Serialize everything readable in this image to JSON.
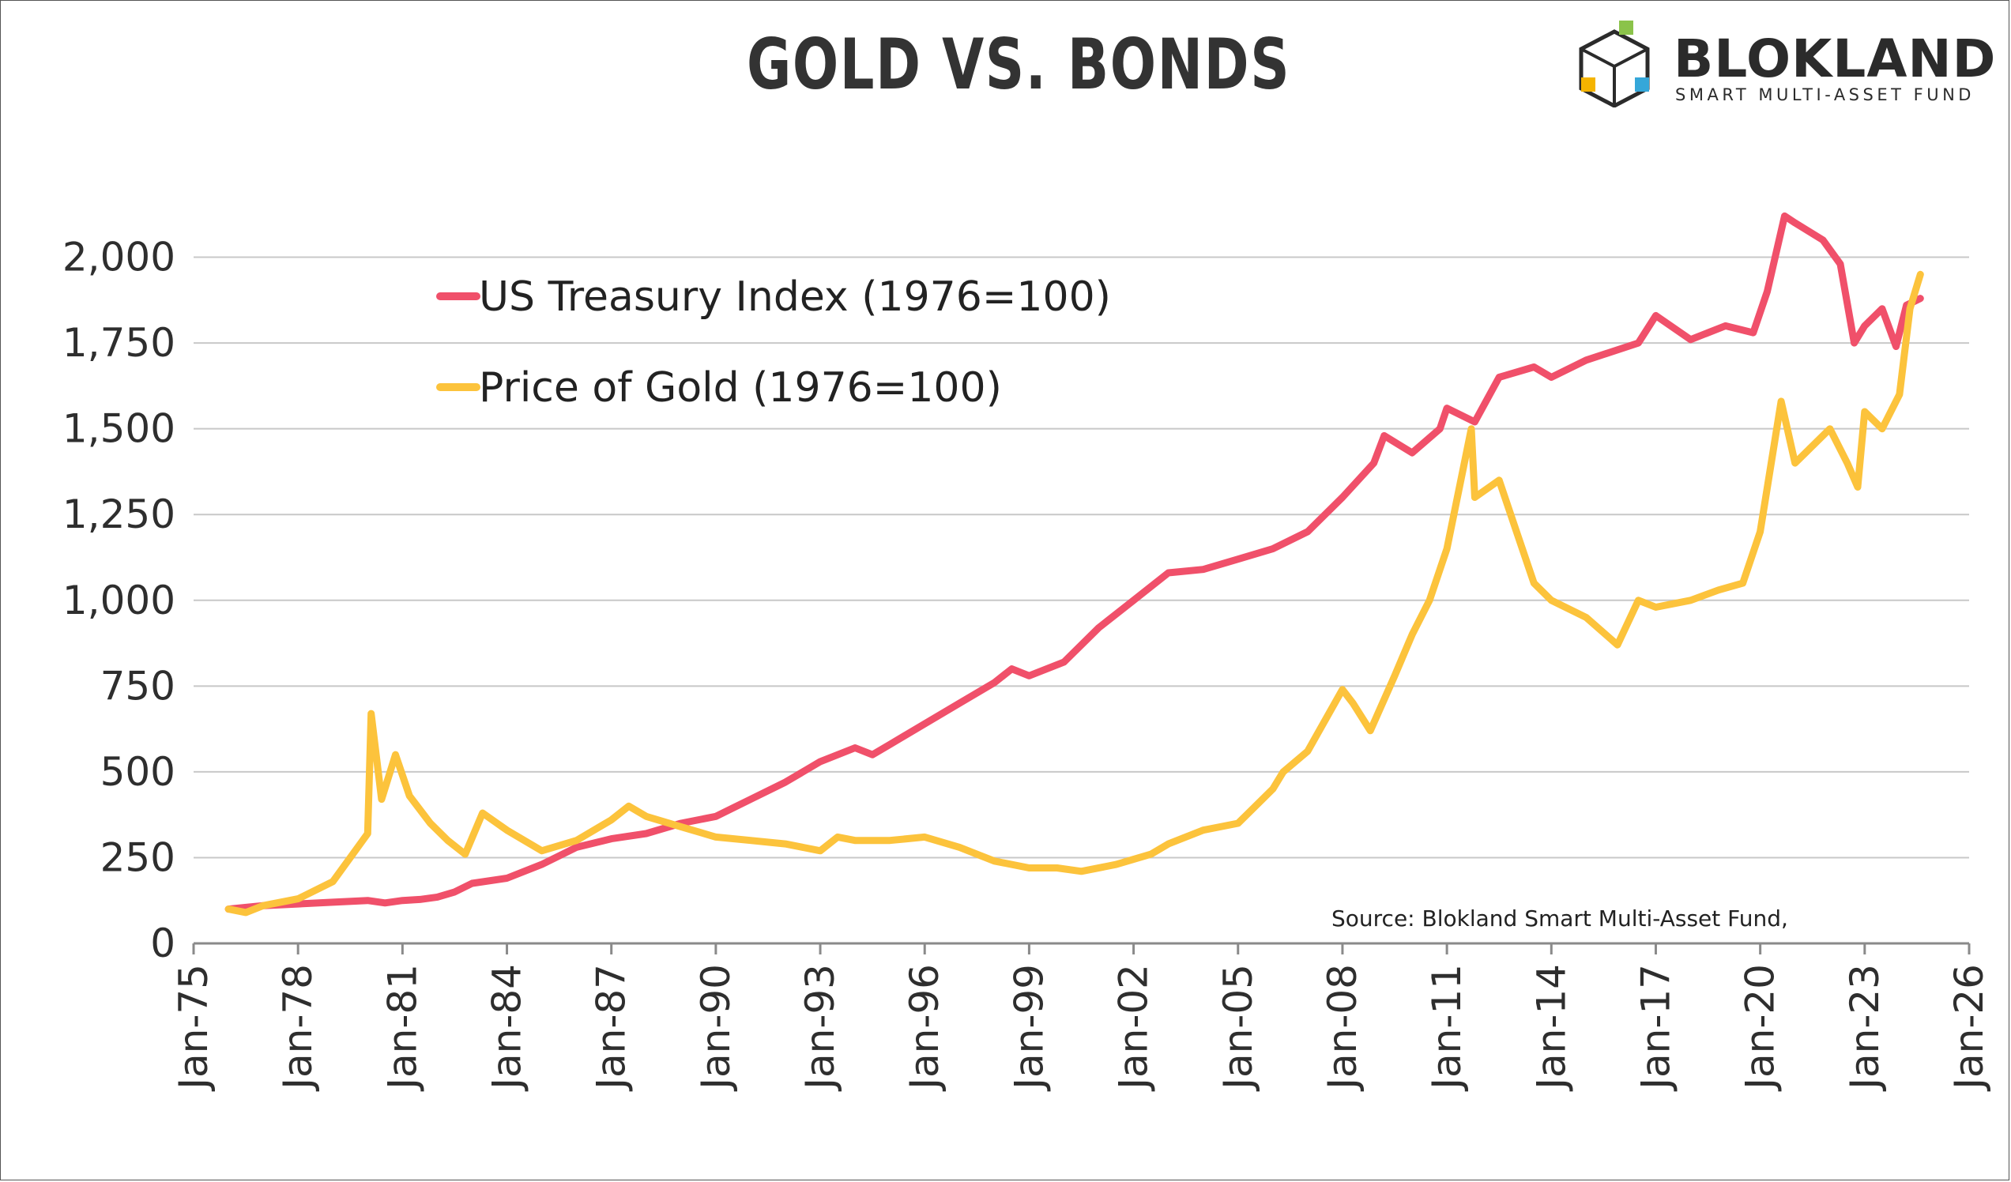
{
  "header": {
    "title": "GOLD VS. BONDS",
    "brand_name": "BLOKLAND",
    "brand_tagline": "SMART MULTI-ASSET FUND"
  },
  "colors": {
    "treasury": "#f0506a",
    "gold": "#fcc33c",
    "grid": "#c8c8c8",
    "axis": "#8a8a8a"
  },
  "chart_data": {
    "type": "line",
    "title": "GOLD VS. BONDS",
    "xlabel": "",
    "ylabel": "",
    "ylim": [
      0,
      2250
    ],
    "xlim": [
      1975.0,
      2026.0
    ],
    "y_ticks": [
      0,
      250,
      500,
      750,
      1000,
      1250,
      1500,
      1750,
      2000
    ],
    "y_tick_labels": [
      "0",
      "250",
      "500",
      "750",
      "1,000",
      "1,250",
      "1,500",
      "1,750",
      "2,000"
    ],
    "x_ticks": [
      1975,
      1978,
      1981,
      1984,
      1987,
      1990,
      1993,
      1996,
      1999,
      2002,
      2005,
      2008,
      2011,
      2014,
      2017,
      2020,
      2023,
      2026
    ],
    "x_tick_labels": [
      "Jan-75",
      "Jan-78",
      "Jan-81",
      "Jan-84",
      "Jan-87",
      "Jan-90",
      "Jan-93",
      "Jan-96",
      "Jan-99",
      "Jan-02",
      "Jan-05",
      "Jan-08",
      "Jan-11",
      "Jan-14",
      "Jan-17",
      "Jan-20",
      "Jan-23",
      "Jan-26"
    ],
    "legend_position": "top-left",
    "source": "Source: Blokland Smart Multi-Asset Fund,",
    "series": [
      {
        "name": "US Treasury Index (1976=100)",
        "color": "#f0506a",
        "x": [
          1976.0,
          1977.0,
          1978.0,
          1979.0,
          1980.0,
          1980.5,
          1981.0,
          1981.5,
          1982.0,
          1982.5,
          1983.0,
          1984.0,
          1985.0,
          1986.0,
          1987.0,
          1988.0,
          1989.0,
          1990.0,
          1991.0,
          1992.0,
          1993.0,
          1994.0,
          1994.5,
          1995.0,
          1996.0,
          1997.0,
          1998.0,
          1998.5,
          1999.0,
          2000.0,
          2001.0,
          2002.0,
          2003.0,
          2004.0,
          2005.0,
          2006.0,
          2007.0,
          2008.0,
          2008.9,
          2009.2,
          2010.0,
          2010.8,
          2011.0,
          2011.8,
          2012.5,
          2013.5,
          2014.0,
          2015.0,
          2016.5,
          2017.0,
          2018.0,
          2019.0,
          2019.8,
          2020.2,
          2020.7,
          2021.0,
          2021.8,
          2022.3,
          2022.7,
          2023.0,
          2023.5,
          2023.9,
          2024.2,
          2024.6
        ],
        "y": [
          100,
          110,
          115,
          120,
          125,
          118,
          125,
          128,
          135,
          150,
          175,
          190,
          230,
          280,
          305,
          320,
          350,
          370,
          420,
          470,
          530,
          570,
          550,
          580,
          640,
          700,
          760,
          800,
          780,
          820,
          920,
          1000,
          1080,
          1090,
          1120,
          1150,
          1200,
          1300,
          1400,
          1480,
          1430,
          1500,
          1560,
          1520,
          1650,
          1680,
          1650,
          1700,
          1750,
          1830,
          1760,
          1800,
          1780,
          1900,
          2120,
          2100,
          2050,
          1980,
          1750,
          1800,
          1850,
          1740,
          1860,
          1880
        ]
      },
      {
        "name": "Price of Gold (1976=100)",
        "color": "#fcc33c",
        "x": [
          1976.0,
          1976.5,
          1977.0,
          1978.0,
          1979.0,
          1979.5,
          1980.0,
          1980.1,
          1980.4,
          1980.8,
          1981.2,
          1981.8,
          1982.3,
          1982.8,
          1983.3,
          1984.0,
          1985.0,
          1986.0,
          1987.0,
          1987.5,
          1988.0,
          1989.0,
          1990.0,
          1991.0,
          1992.0,
          1993.0,
          1993.5,
          1994.0,
          1995.0,
          1996.0,
          1997.0,
          1998.0,
          1999.0,
          1999.8,
          2000.5,
          2001.5,
          2002.5,
          2003.0,
          2004.0,
          2005.0,
          2006.0,
          2006.3,
          2007.0,
          2008.0,
          2008.3,
          2008.8,
          2009.5,
          2010.0,
          2010.5,
          2011.0,
          2011.7,
          2011.8,
          2012.5,
          2013.0,
          2013.5,
          2014.0,
          2015.0,
          2015.9,
          2016.5,
          2017.0,
          2018.0,
          2018.8,
          2019.5,
          2020.0,
          2020.6,
          2021.0,
          2021.5,
          2022.0,
          2022.5,
          2022.8,
          2023.0,
          2023.5,
          2024.0,
          2024.3,
          2024.6
        ],
        "y": [
          100,
          90,
          110,
          130,
          180,
          250,
          320,
          670,
          420,
          550,
          430,
          350,
          300,
          260,
          380,
          330,
          270,
          300,
          360,
          400,
          370,
          340,
          310,
          300,
          290,
          270,
          310,
          300,
          300,
          310,
          280,
          240,
          220,
          220,
          210,
          230,
          260,
          290,
          330,
          350,
          450,
          500,
          560,
          740,
          700,
          620,
          780,
          900,
          1000,
          1150,
          1500,
          1300,
          1350,
          1200,
          1050,
          1000,
          950,
          870,
          1000,
          980,
          1000,
          1030,
          1050,
          1200,
          1580,
          1400,
          1450,
          1500,
          1400,
          1330,
          1550,
          1500,
          1600,
          1850,
          1950
        ]
      }
    ]
  }
}
